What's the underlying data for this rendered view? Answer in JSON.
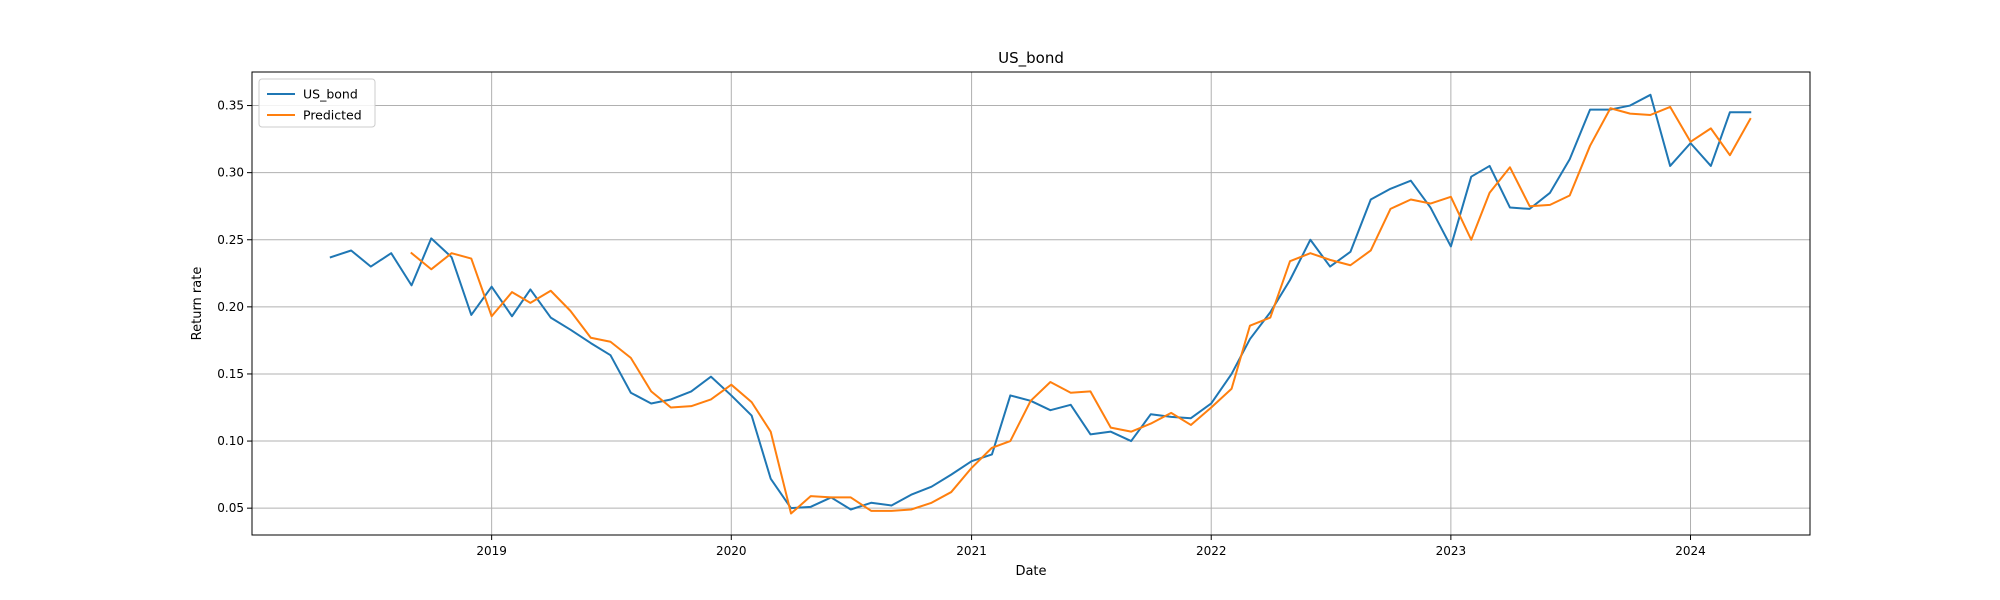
{
  "chart_data": {
    "type": "line",
    "title": "US_bond",
    "xlabel": "Date",
    "ylabel": "Return rate",
    "grid": true,
    "legend_position": "top-left",
    "x_tick_labels": [
      "2019",
      "2020",
      "2021",
      "2022",
      "2023",
      "2024"
    ],
    "y_tick_labels": [
      "0.05",
      "0.10",
      "0.15",
      "0.20",
      "0.25",
      "0.30",
      "0.35"
    ],
    "xlim": [
      "2018-01-01",
      "2024-07-01"
    ],
    "ylim": [
      0.03,
      0.375
    ],
    "series": [
      {
        "name": "US_bond",
        "color": "#1f77b4",
        "points": [
          [
            "2018-05-01",
            0.237
          ],
          [
            "2018-06-01",
            0.242
          ],
          [
            "2018-07-01",
            0.23
          ],
          [
            "2018-08-01",
            0.24
          ],
          [
            "2018-09-01",
            0.216
          ],
          [
            "2018-10-01",
            0.251
          ],
          [
            "2018-11-01",
            0.237
          ],
          [
            "2018-12-01",
            0.194
          ],
          [
            "2019-01-01",
            0.215
          ],
          [
            "2019-02-01",
            0.193
          ],
          [
            "2019-03-01",
            0.213
          ],
          [
            "2019-04-01",
            0.192
          ],
          [
            "2019-05-01",
            0.183
          ],
          [
            "2019-06-01",
            0.173
          ],
          [
            "2019-07-01",
            0.164
          ],
          [
            "2019-08-01",
            0.136
          ],
          [
            "2019-09-01",
            0.128
          ],
          [
            "2019-10-01",
            0.131
          ],
          [
            "2019-11-01",
            0.137
          ],
          [
            "2019-12-01",
            0.148
          ],
          [
            "2020-01-01",
            0.134
          ],
          [
            "2020-02-01",
            0.119
          ],
          [
            "2020-03-01",
            0.072
          ],
          [
            "2020-04-01",
            0.05
          ],
          [
            "2020-05-01",
            0.051
          ],
          [
            "2020-06-01",
            0.058
          ],
          [
            "2020-07-01",
            0.049
          ],
          [
            "2020-08-01",
            0.054
          ],
          [
            "2020-09-01",
            0.052
          ],
          [
            "2020-10-01",
            0.06
          ],
          [
            "2020-11-01",
            0.066
          ],
          [
            "2020-12-01",
            0.075
          ],
          [
            "2021-01-01",
            0.085
          ],
          [
            "2021-02-01",
            0.09
          ],
          [
            "2021-03-01",
            0.134
          ],
          [
            "2021-04-01",
            0.13
          ],
          [
            "2021-05-01",
            0.123
          ],
          [
            "2021-06-01",
            0.127
          ],
          [
            "2021-07-01",
            0.105
          ],
          [
            "2021-08-01",
            0.107
          ],
          [
            "2021-09-01",
            0.1
          ],
          [
            "2021-10-01",
            0.12
          ],
          [
            "2021-11-01",
            0.118
          ],
          [
            "2021-12-01",
            0.117
          ],
          [
            "2022-01-01",
            0.128
          ],
          [
            "2022-02-01",
            0.15
          ],
          [
            "2022-03-01",
            0.176
          ],
          [
            "2022-04-01",
            0.196
          ],
          [
            "2022-05-01",
            0.22
          ],
          [
            "2022-06-01",
            0.25
          ],
          [
            "2022-07-01",
            0.23
          ],
          [
            "2022-08-01",
            0.241
          ],
          [
            "2022-09-01",
            0.28
          ],
          [
            "2022-10-01",
            0.288
          ],
          [
            "2022-11-01",
            0.294
          ],
          [
            "2022-12-01",
            0.274
          ],
          [
            "2023-01-01",
            0.245
          ],
          [
            "2023-02-01",
            0.297
          ],
          [
            "2023-03-01",
            0.305
          ],
          [
            "2023-04-01",
            0.274
          ],
          [
            "2023-05-01",
            0.273
          ],
          [
            "2023-06-01",
            0.285
          ],
          [
            "2023-07-01",
            0.31
          ],
          [
            "2023-08-01",
            0.347
          ],
          [
            "2023-09-01",
            0.347
          ],
          [
            "2023-10-01",
            0.35
          ],
          [
            "2023-11-01",
            0.358
          ],
          [
            "2023-12-01",
            0.305
          ],
          [
            "2024-01-01",
            0.322
          ],
          [
            "2024-02-01",
            0.305
          ],
          [
            "2024-03-01",
            0.345
          ],
          [
            "2024-04-01",
            0.345
          ]
        ]
      },
      {
        "name": "Predicted",
        "color": "#ff7f0e",
        "points": [
          [
            "2018-09-01",
            0.24
          ],
          [
            "2018-10-01",
            0.228
          ],
          [
            "2018-11-01",
            0.24
          ],
          [
            "2018-12-01",
            0.236
          ],
          [
            "2019-01-01",
            0.193
          ],
          [
            "2019-02-01",
            0.211
          ],
          [
            "2019-03-01",
            0.203
          ],
          [
            "2019-04-01",
            0.212
          ],
          [
            "2019-05-01",
            0.197
          ],
          [
            "2019-06-01",
            0.177
          ],
          [
            "2019-07-01",
            0.174
          ],
          [
            "2019-08-01",
            0.162
          ],
          [
            "2019-09-01",
            0.137
          ],
          [
            "2019-10-01",
            0.125
          ],
          [
            "2019-11-01",
            0.126
          ],
          [
            "2019-12-01",
            0.131
          ],
          [
            "2020-01-01",
            0.142
          ],
          [
            "2020-02-01",
            0.129
          ],
          [
            "2020-03-01",
            0.107
          ],
          [
            "2020-04-01",
            0.046
          ],
          [
            "2020-05-01",
            0.059
          ],
          [
            "2020-06-01",
            0.058
          ],
          [
            "2020-07-01",
            0.058
          ],
          [
            "2020-08-01",
            0.048
          ],
          [
            "2020-09-01",
            0.048
          ],
          [
            "2020-10-01",
            0.049
          ],
          [
            "2020-11-01",
            0.054
          ],
          [
            "2020-12-01",
            0.062
          ],
          [
            "2021-01-01",
            0.08
          ],
          [
            "2021-02-01",
            0.095
          ],
          [
            "2021-03-01",
            0.1
          ],
          [
            "2021-04-01",
            0.13
          ],
          [
            "2021-05-01",
            0.144
          ],
          [
            "2021-06-01",
            0.136
          ],
          [
            "2021-07-01",
            0.137
          ],
          [
            "2021-08-01",
            0.11
          ],
          [
            "2021-09-01",
            0.107
          ],
          [
            "2021-10-01",
            0.113
          ],
          [
            "2021-11-01",
            0.121
          ],
          [
            "2021-12-01",
            0.112
          ],
          [
            "2022-01-01",
            0.125
          ],
          [
            "2022-02-01",
            0.139
          ],
          [
            "2022-03-01",
            0.186
          ],
          [
            "2022-04-01",
            0.192
          ],
          [
            "2022-05-01",
            0.234
          ],
          [
            "2022-06-01",
            0.24
          ],
          [
            "2022-07-01",
            0.235
          ],
          [
            "2022-08-01",
            0.231
          ],
          [
            "2022-09-01",
            0.242
          ],
          [
            "2022-10-01",
            0.273
          ],
          [
            "2022-11-01",
            0.28
          ],
          [
            "2022-12-01",
            0.277
          ],
          [
            "2023-01-01",
            0.282
          ],
          [
            "2023-02-01",
            0.25
          ],
          [
            "2023-03-01",
            0.285
          ],
          [
            "2023-04-01",
            0.304
          ],
          [
            "2023-05-01",
            0.275
          ],
          [
            "2023-06-01",
            0.276
          ],
          [
            "2023-07-01",
            0.283
          ],
          [
            "2023-08-01",
            0.32
          ],
          [
            "2023-09-01",
            0.348
          ],
          [
            "2023-10-01",
            0.344
          ],
          [
            "2023-11-01",
            0.343
          ],
          [
            "2023-12-01",
            0.349
          ],
          [
            "2024-01-01",
            0.323
          ],
          [
            "2024-02-01",
            0.333
          ],
          [
            "2024-03-01",
            0.313
          ],
          [
            "2024-04-01",
            0.34
          ]
        ]
      }
    ]
  }
}
